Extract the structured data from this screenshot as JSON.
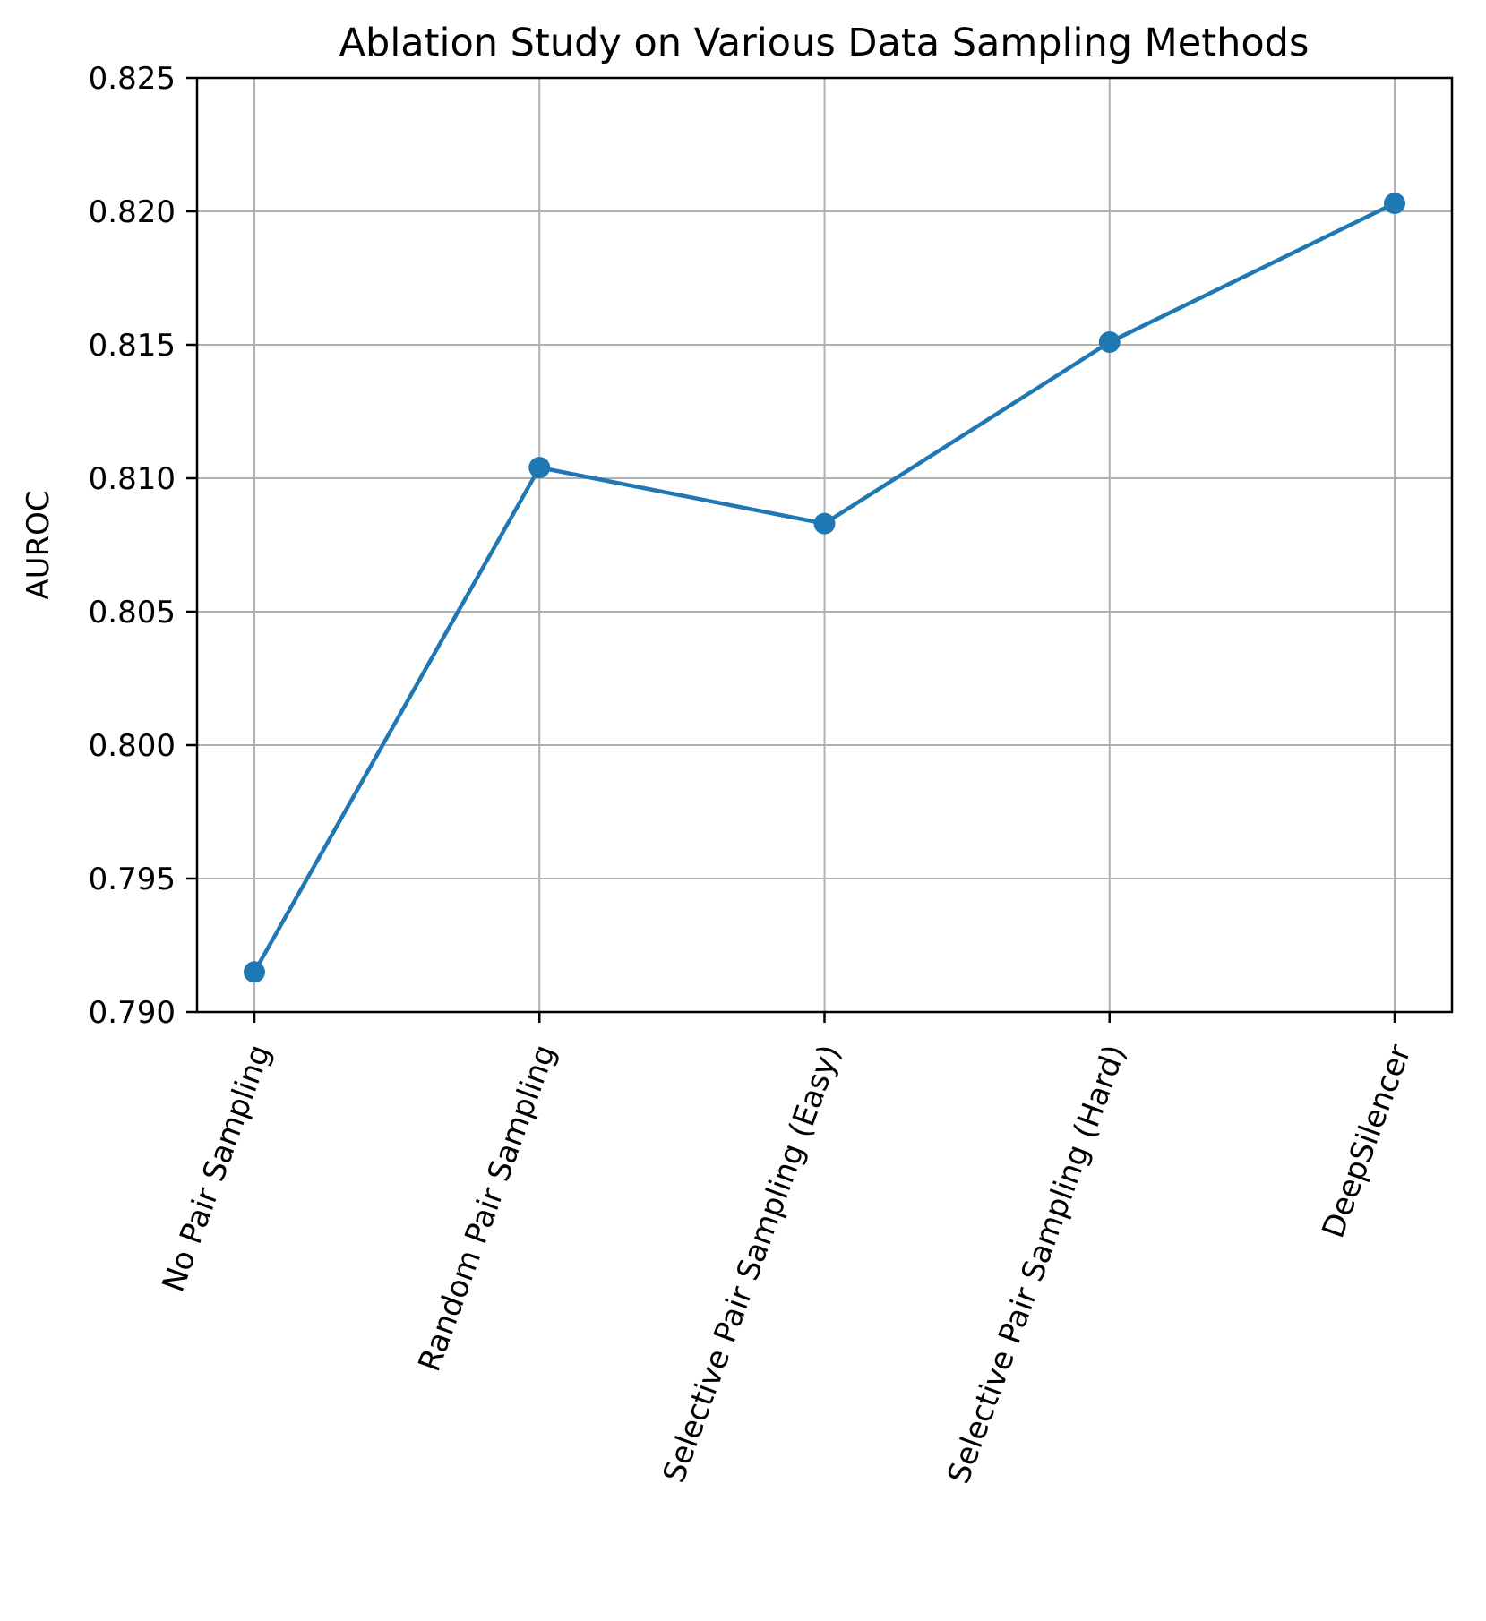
{
  "chart_data": {
    "type": "line",
    "title": "Ablation Study on Various Data Sampling Methods",
    "xlabel": "",
    "ylabel": "AUROC",
    "categories": [
      "No Pair Sampling",
      "Random Pair Sampling",
      "Selective Pair Sampling (Easy)",
      "Selective Pair Sampling (Hard)",
      "DeepSilencer"
    ],
    "series": [
      {
        "values": [
          0.7915,
          0.8104,
          0.8083,
          0.8151,
          0.8203
        ]
      }
    ],
    "ylim": [
      0.79,
      0.825
    ],
    "yticks": [
      "0.790",
      "0.795",
      "0.800",
      "0.805",
      "0.810",
      "0.815",
      "0.820",
      "0.825"
    ],
    "grid": true,
    "markers": true,
    "x_tick_rotation_deg": -70,
    "colors": {
      "line": "#1f77b4",
      "grid": "#b0b0b0",
      "axes": "#000000"
    }
  }
}
